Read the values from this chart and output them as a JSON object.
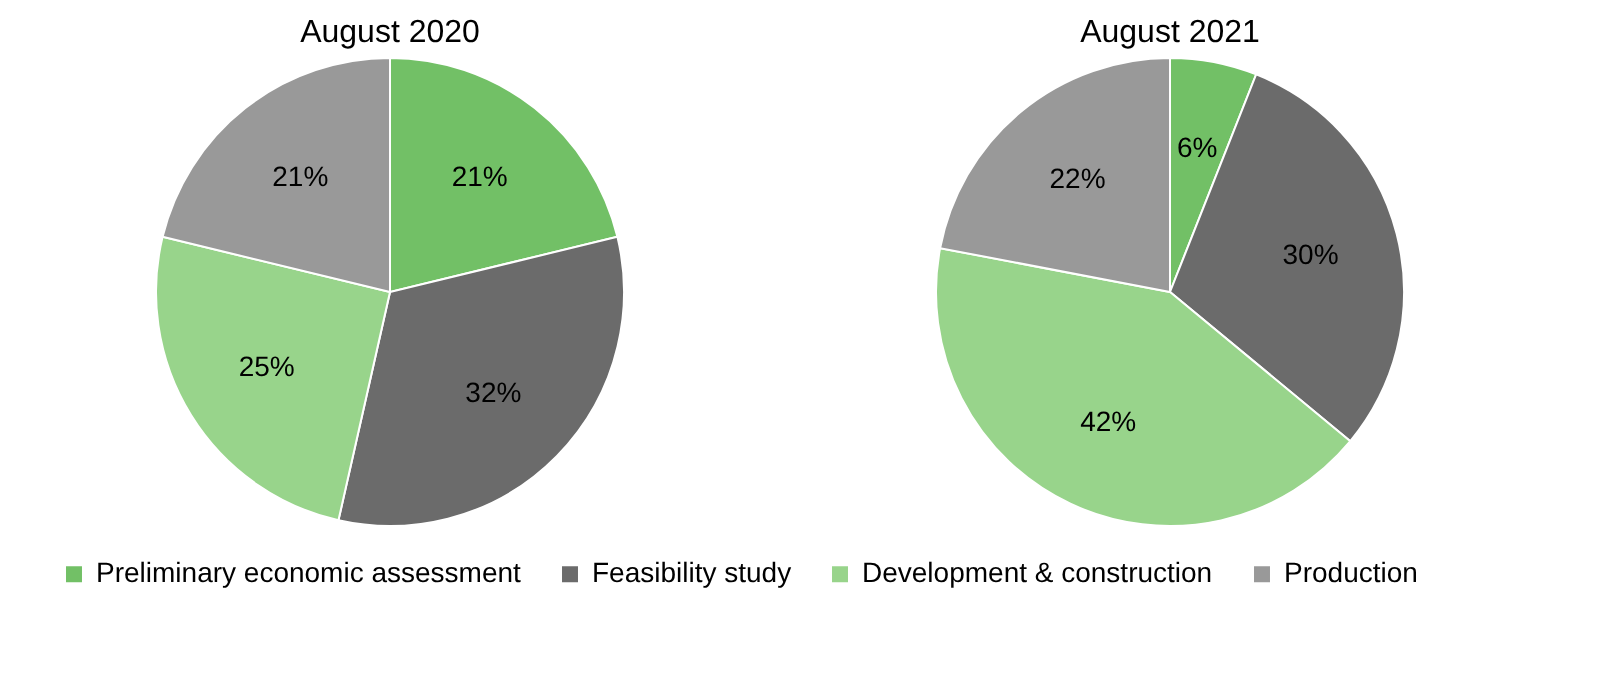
{
  "chart_data": {
    "type": "pie",
    "categories": [
      "Preliminary economic assessment",
      "Feasibility study",
      "Development & construction",
      "Production"
    ],
    "colors": [
      "#72c066",
      "#6b6b6b",
      "#98d48b",
      "#999999"
    ],
    "legend": "bottom",
    "series": [
      {
        "name": "August 2020",
        "values": [
          21,
          32,
          25,
          21
        ],
        "value_labels": [
          "21%",
          "32%",
          "25%",
          "21%"
        ]
      },
      {
        "name": "August 2021",
        "values": [
          6,
          30,
          42,
          22
        ],
        "value_labels": [
          "6%",
          "30%",
          "42%",
          "22%"
        ]
      }
    ]
  }
}
